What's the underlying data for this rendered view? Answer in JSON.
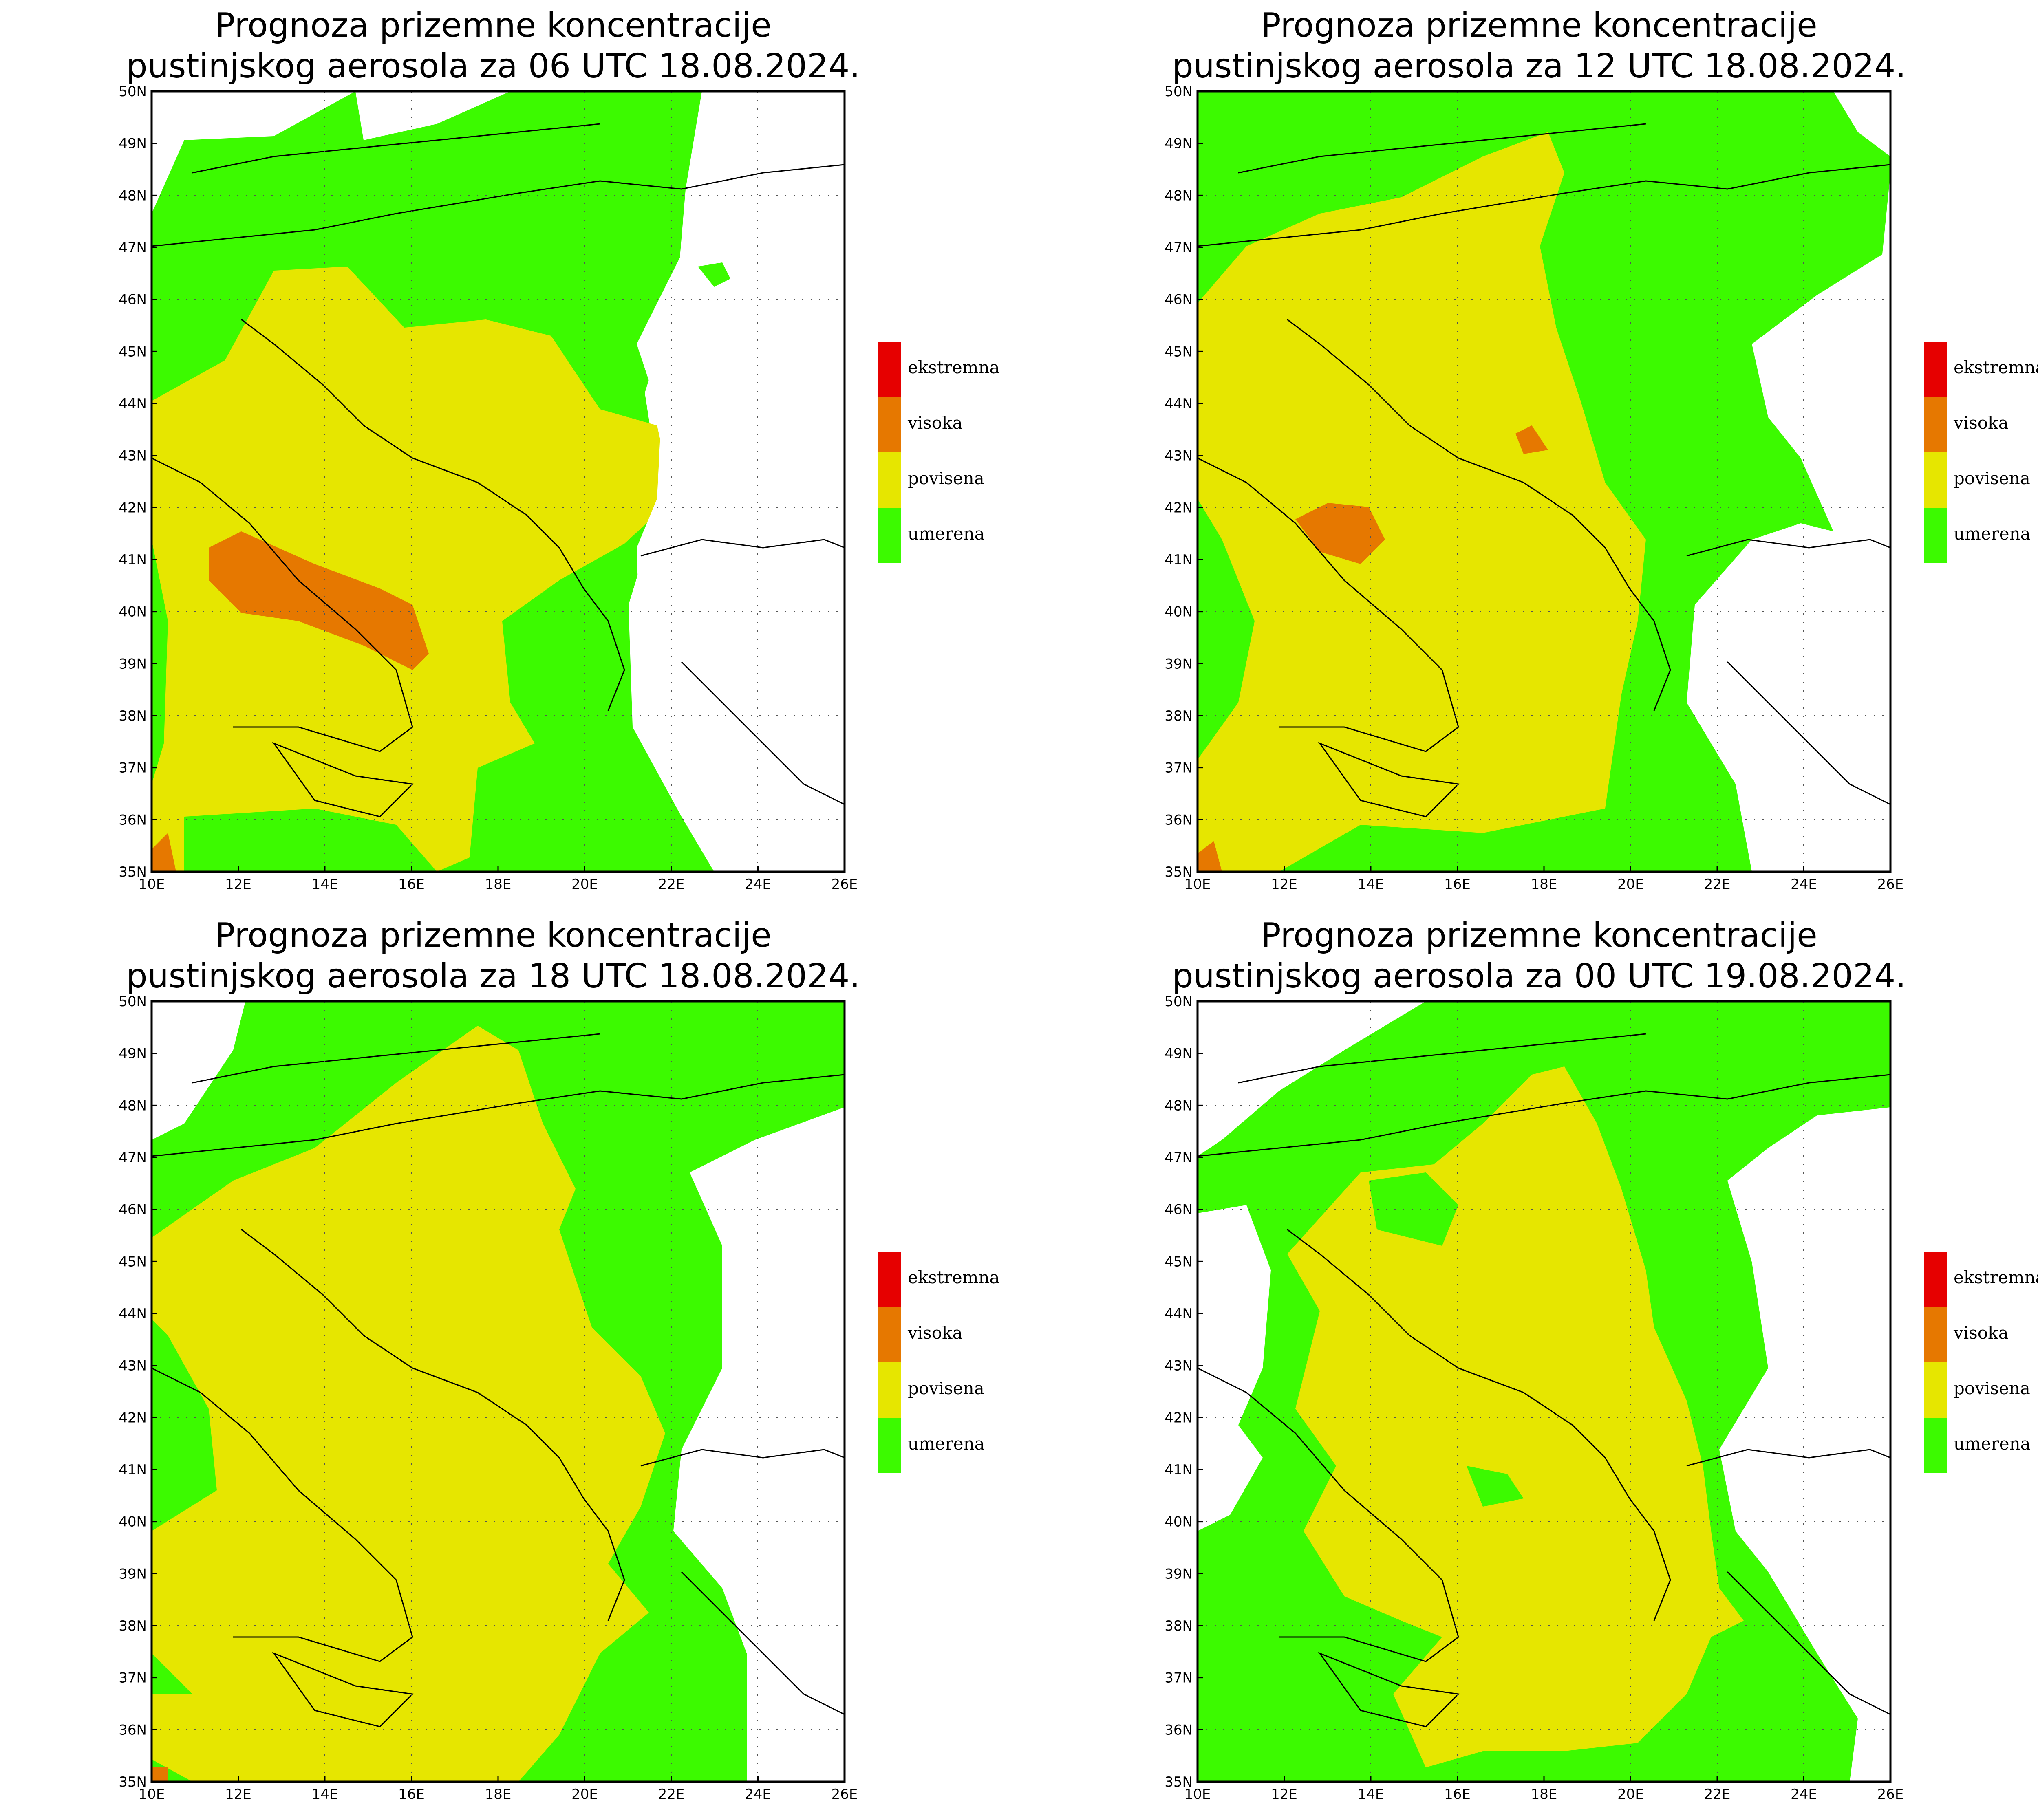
{
  "panels": [
    {
      "title_line1": "Prognoza prizemne koncentracije",
      "title_line2": "pustinjskog aerosola za 06 UTC 18.08.2024."
    },
    {
      "title_line1": "Prognoza prizemne koncentracije",
      "title_line2": "pustinjskog aerosola za 12 UTC 18.08.2024."
    },
    {
      "title_line1": "Prognoza prizemne koncentracije",
      "title_line2": "pustinjskog aerosola za 18 UTC 18.08.2024."
    },
    {
      "title_line1": "Prognoza prizemne koncentracije",
      "title_line2": "pustinjskog aerosola za 00 UTC 19.08.2024."
    }
  ],
  "axes": {
    "lat_labels": [
      "35N",
      "36N",
      "37N",
      "38N",
      "39N",
      "40N",
      "41N",
      "42N",
      "43N",
      "44N",
      "45N",
      "46N",
      "47N",
      "48N",
      "49N",
      "50N"
    ],
    "lon_labels": [
      "10E",
      "12E",
      "14E",
      "16E",
      "18E",
      "20E",
      "22E",
      "24E",
      "26E"
    ]
  },
  "legend": [
    {
      "label": "ekstremna",
      "color": "#e60000"
    },
    {
      "label": "visoka",
      "color": "#e67800"
    },
    {
      "label": "povisena",
      "color": "#e6e600"
    },
    {
      "label": "umerena",
      "color": "#3cfa00"
    }
  ],
  "colors": {
    "umerena": "#3cfa00",
    "povisena": "#e6e600",
    "visoka": "#e67800",
    "ekstremna": "#e60000"
  }
}
